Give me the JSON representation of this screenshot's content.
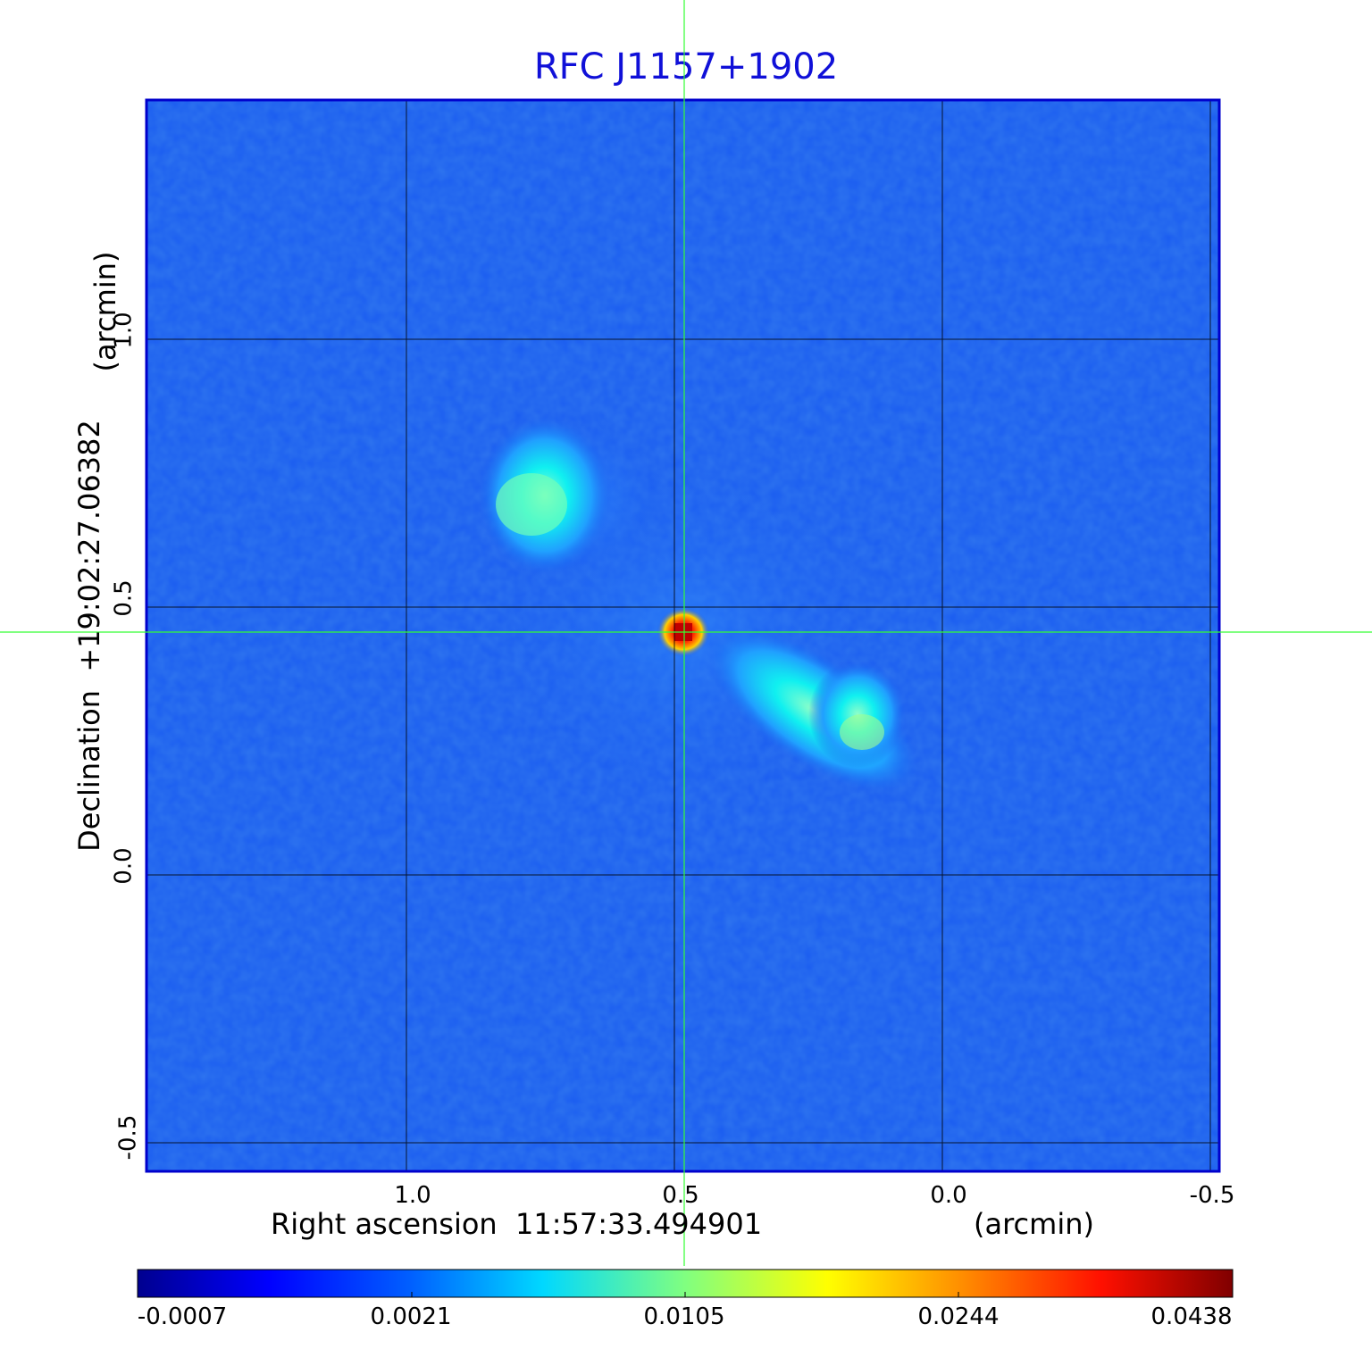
{
  "title": "RFC J1157+1902",
  "x_axis": {
    "label": "Right ascension  11:57:33.494901",
    "unit": "(arcmin)",
    "ticks": [
      "1.0",
      "0.5",
      "0.0",
      "-0.5"
    ]
  },
  "y_axis": {
    "label": "Declination  +19:02:27.06382",
    "unit": "(arcmin)",
    "ticks": [
      "1.0",
      "0.5",
      "0.0",
      "-0.5"
    ]
  },
  "colorbar": {
    "colormap": "jet",
    "ticks": [
      "-0.0007",
      "0.0021",
      "0.0105",
      "0.0244",
      "0.0438"
    ]
  },
  "colors": {
    "title": "#1010d8",
    "frame": "#0000cc",
    "crosshair": "#33ff33",
    "grid": "#000000",
    "background_field": "#1a5cf0"
  }
}
